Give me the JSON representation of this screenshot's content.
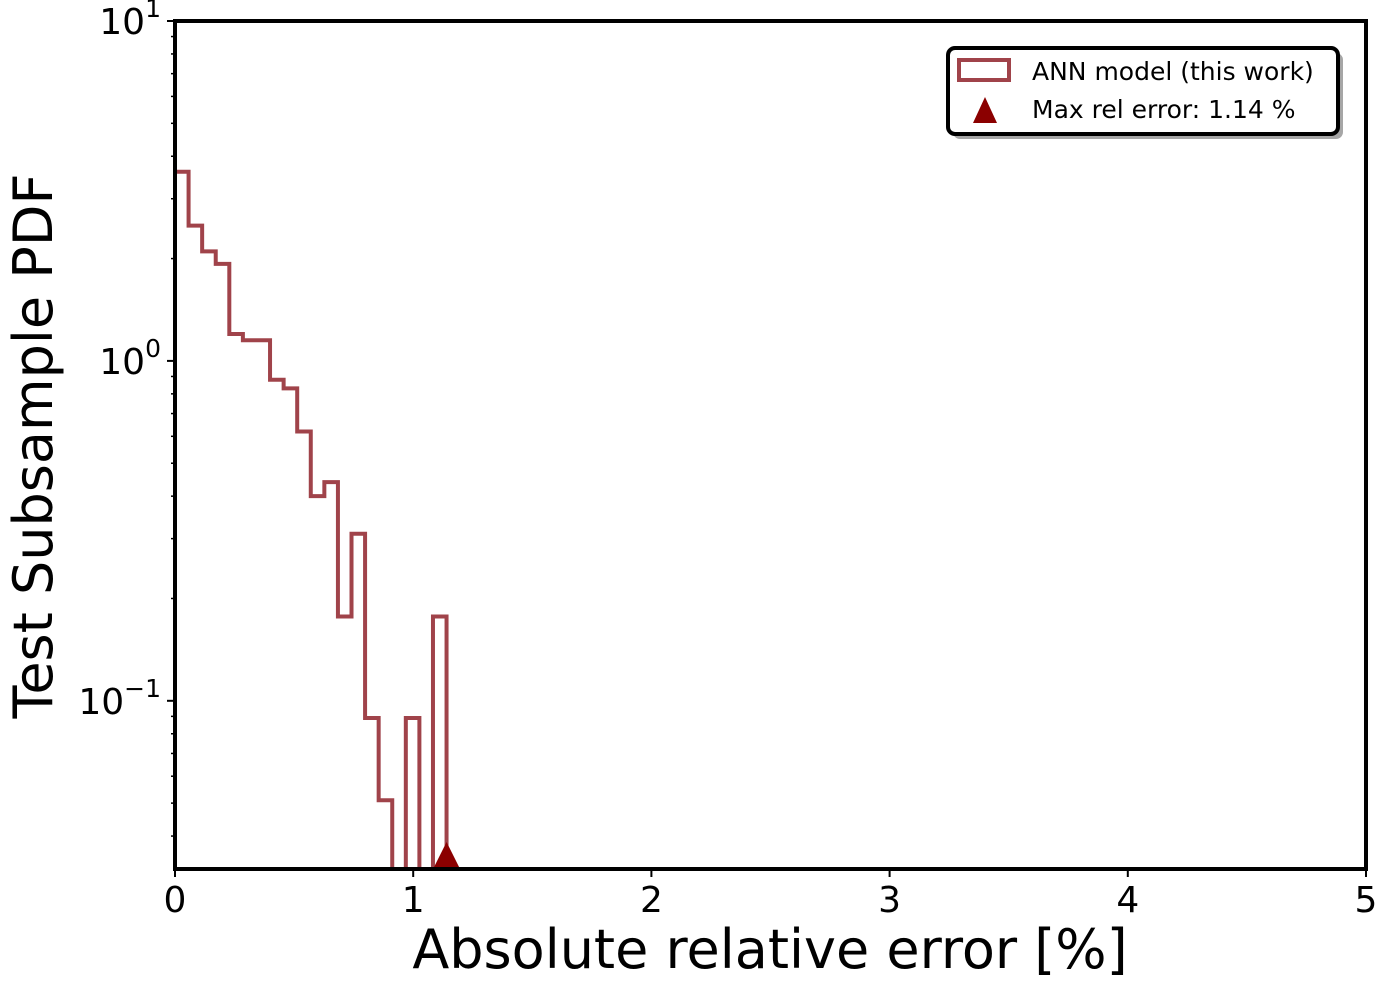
{
  "colors": {
    "histogram": "#a0434a",
    "marker": "#8b0000",
    "axes": "#000000"
  },
  "chart_data": {
    "type": "histogram",
    "xlabel": "Absolute relative error [%]",
    "ylabel": "Test Subsample PDF",
    "xlim": [
      0,
      5
    ],
    "ylim": [
      0.032,
      10
    ],
    "yscale": "log",
    "x_ticks": [
      {
        "value": 0,
        "label": "0"
      },
      {
        "value": 1,
        "label": "1"
      },
      {
        "value": 2,
        "label": "2"
      },
      {
        "value": 3,
        "label": "3"
      },
      {
        "value": 4,
        "label": "4"
      },
      {
        "value": 5,
        "label": "5"
      }
    ],
    "y_ticks": [
      {
        "value": 10,
        "base": "10",
        "exp": "1"
      },
      {
        "value": 1,
        "base": "10",
        "exp": "0"
      },
      {
        "value": 0.1,
        "base": "10",
        "exp": "−1"
      }
    ],
    "bin_width": 0.057,
    "series": [
      {
        "name": "ANN model (this work)",
        "type": "step-histogram",
        "bins": [
          {
            "x0": 0.0,
            "y": 3.6
          },
          {
            "x0": 0.057,
            "y": 2.5
          },
          {
            "x0": 0.114,
            "y": 2.1
          },
          {
            "x0": 0.171,
            "y": 1.93
          },
          {
            "x0": 0.228,
            "y": 1.2
          },
          {
            "x0": 0.285,
            "y": 1.15
          },
          {
            "x0": 0.342,
            "y": 1.15
          },
          {
            "x0": 0.399,
            "y": 0.88
          },
          {
            "x0": 0.456,
            "y": 0.83
          },
          {
            "x0": 0.513,
            "y": 0.62
          },
          {
            "x0": 0.57,
            "y": 0.4
          },
          {
            "x0": 0.627,
            "y": 0.44
          },
          {
            "x0": 0.684,
            "y": 0.177
          },
          {
            "x0": 0.741,
            "y": 0.31
          },
          {
            "x0": 0.798,
            "y": 0.089
          },
          {
            "x0": 0.855,
            "y": 0.051
          },
          {
            "x0": 0.912,
            "y": 0
          },
          {
            "x0": 0.969,
            "y": 0.089
          },
          {
            "x0": 1.026,
            "y": 0
          },
          {
            "x0": 1.083,
            "y": 0.177
          }
        ]
      },
      {
        "name": "Max rel error: 1.14 %",
        "type": "marker",
        "marker": "triangle-up",
        "x": 1.14
      }
    ],
    "legend": {
      "placement": "top-right",
      "entries": [
        {
          "label": "ANN model (this work)",
          "symbol": "open-rectangle"
        },
        {
          "label": "Max rel error: 1.14 %",
          "symbol": "triangle-up"
        }
      ]
    },
    "grid": false
  }
}
